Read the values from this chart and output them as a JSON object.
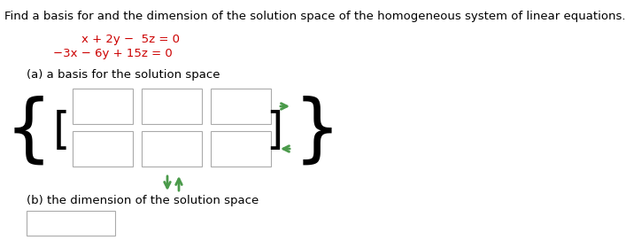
{
  "title": "Find a basis for and the dimension of the solution space of the homogeneous system of linear equations.",
  "eq1": "    x + 2y −  5z = 0",
  "eq2": "−3x − 6y + 15z = 0",
  "label_a": "(a) a basis for the solution space",
  "label_b": "(b) the dimension of the solution space",
  "background_color": "#ffffff",
  "text_color": "#000000",
  "eq_color": "#cc0000",
  "box_color": "#ffffff",
  "box_edge_color": "#aaaaaa",
  "green_color": "#4a9a4a",
  "title_fontsize": 9.5,
  "label_fontsize": 9.5,
  "eq_fontsize": 9.5,
  "brace_fontsize": 60,
  "bracket_fontsize": 36
}
